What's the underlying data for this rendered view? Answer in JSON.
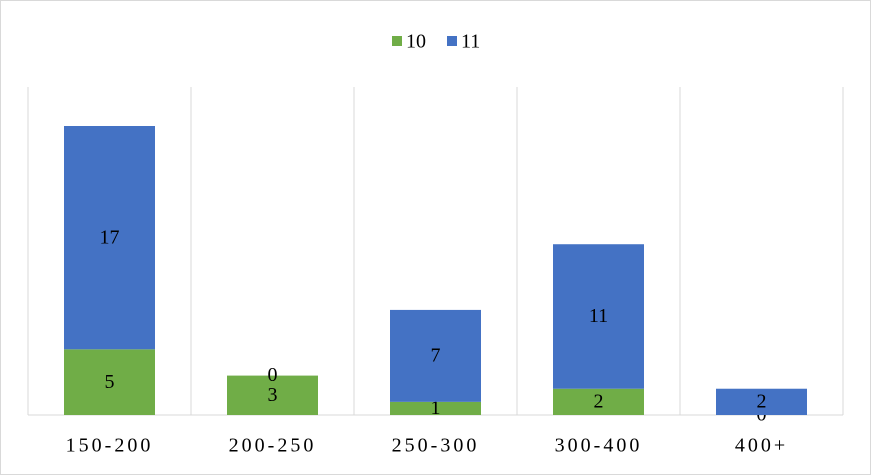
{
  "chart_data": {
    "type": "stacked_bar",
    "categories": [
      "150-200",
      "200-250",
      "250-300",
      "300-400",
      "400+"
    ],
    "series": [
      {
        "name": "10",
        "color": "#70ad47",
        "values": [
          5,
          3,
          1,
          2,
          0
        ]
      },
      {
        "name": "11",
        "color": "#4472c4",
        "values": [
          17,
          0,
          7,
          11,
          2
        ]
      }
    ]
  }
}
